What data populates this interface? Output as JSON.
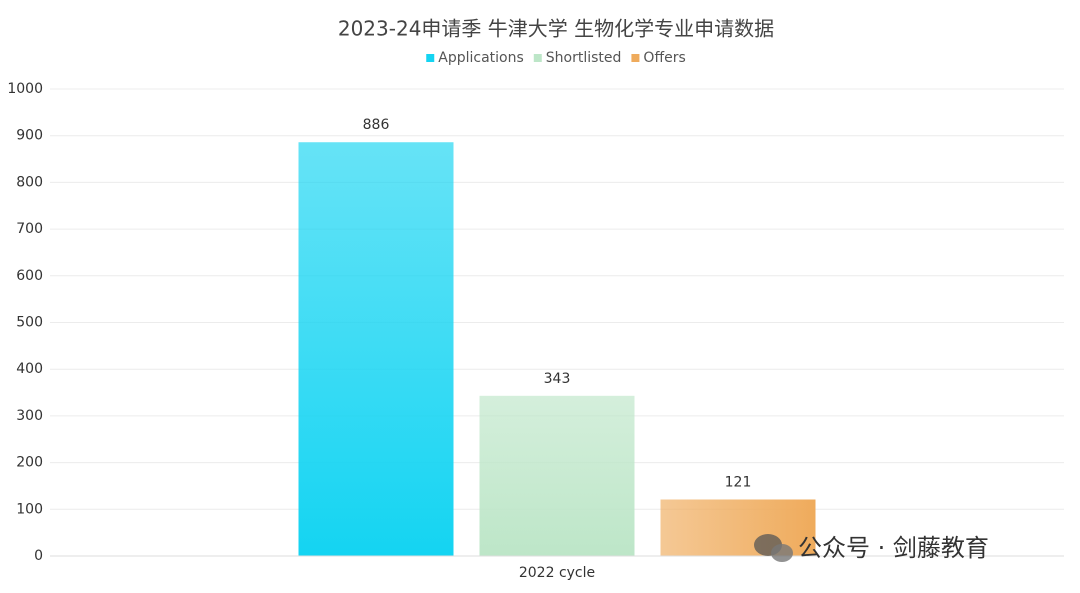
{
  "chart_data": {
    "type": "bar",
    "title": "2023-24申请季 牛津大学 生物化学专业申请数据",
    "categories": [
      "2022 cycle"
    ],
    "series": [
      {
        "name": "Applications",
        "color": "#14d4f2",
        "values": [
          886
        ]
      },
      {
        "name": "Shortlisted",
        "color": "#bde6c8",
        "values": [
          343
        ]
      },
      {
        "name": "Offers",
        "color": "#efab5c",
        "values": [
          121
        ]
      }
    ],
    "ylim": [
      0,
      1000
    ],
    "yticks": [
      0,
      100,
      200,
      300,
      400,
      500,
      600,
      700,
      800,
      900,
      1000
    ],
    "grid": true,
    "legend": "top",
    "footer": "公众号 · 剑藤教育"
  }
}
